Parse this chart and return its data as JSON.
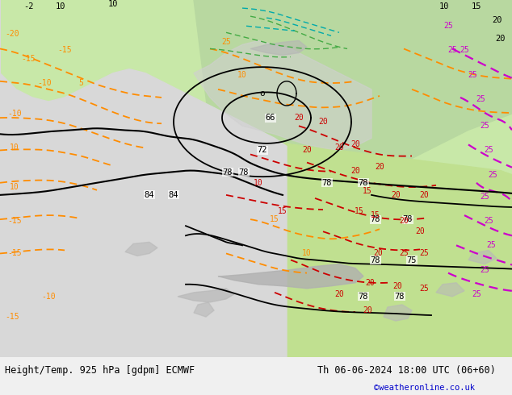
{
  "fig_width": 6.34,
  "fig_height": 4.9,
  "dpi": 100,
  "bottom_label_left": "Height/Temp. 925 hPa [gdpm] ECMWF",
  "bottom_label_right": "Th 06-06-2024 18:00 UTC (06+60)",
  "bottom_label_url": "©weatheronline.co.uk",
  "label_fontsize": 8.5,
  "url_fontsize": 7.5,
  "url_color": "#0000cc",
  "text_color": "#000000",
  "bg_color": "#e8e8e8",
  "map_area_color": "#f0f0f0",
  "land_green_light": "#c8e8a0",
  "land_green_bright": "#a0d060",
  "ocean_gray": "#d8d8d8",
  "mountain_gray": "#b8b8b8",
  "black_contour_lw": 1.4,
  "orange_contour_lw": 1.2,
  "red_contour_lw": 1.2,
  "magenta_contour_lw": 1.5,
  "green_contour_lw": 1.0,
  "teal_contour_lw": 1.0
}
